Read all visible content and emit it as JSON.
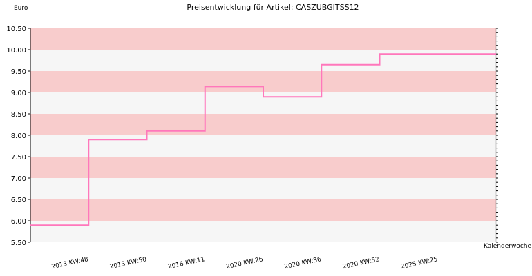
{
  "chart_data": {
    "type": "line",
    "title": "Preisentwicklung für Artikel: CASZUBGITSS12",
    "ylabel": "Euro",
    "xlabel": "Kalenderwoche",
    "ylim": [
      5.5,
      10.5
    ],
    "yticks": [
      "5.50",
      "6.00",
      "6.50",
      "7.00",
      "7.50",
      "8.00",
      "8.50",
      "9.00",
      "9.50",
      "10.00",
      "10.50"
    ],
    "categories": [
      "2013 KW:48",
      "2013 KW:50",
      "2016 KW:11",
      "2020 KW:26",
      "2020 KW:36",
      "2020 KW:52",
      "2025 KW:25"
    ],
    "series": [
      {
        "values": [
          5.9,
          7.9,
          8.1,
          9.14,
          8.9,
          9.65,
          9.9
        ]
      }
    ],
    "step": true,
    "band_colors": [
      "#f8cccc",
      "#f6f6f6"
    ],
    "line_color": "#ff77bb",
    "grid": false,
    "legend": "none"
  }
}
